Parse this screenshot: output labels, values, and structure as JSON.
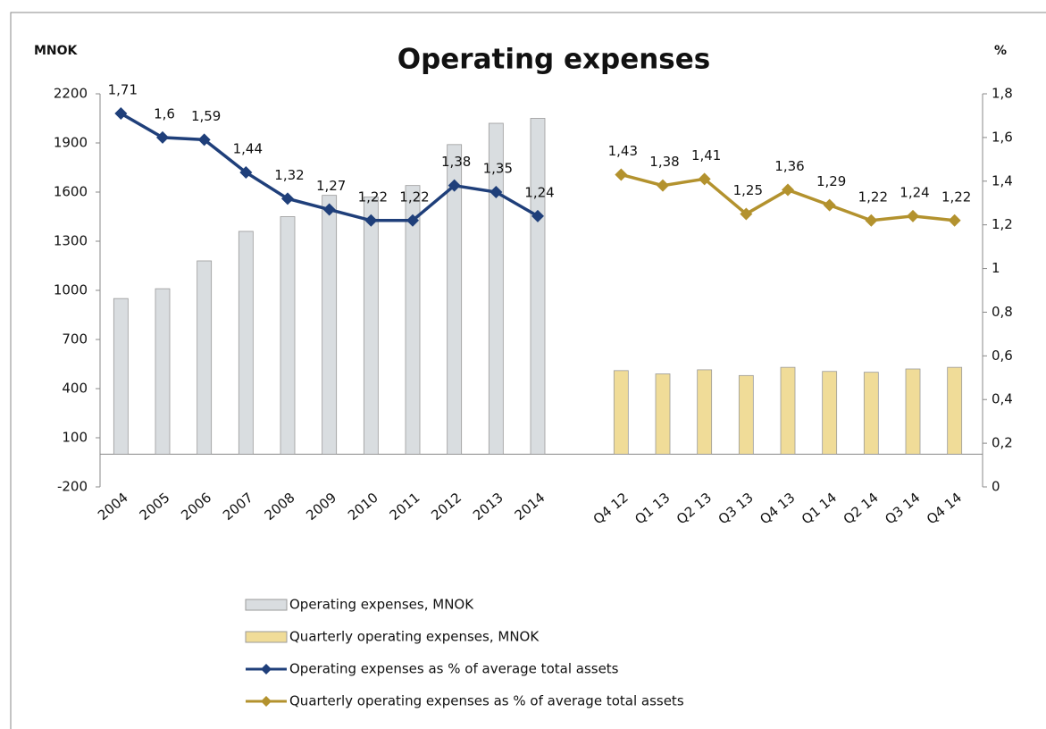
{
  "chart_data": {
    "type": "combo",
    "title": "Operating expenses",
    "y_label": "MNOK",
    "y2_label": "%",
    "categories": [
      "2004",
      "2005",
      "2006",
      "2007",
      "2008",
      "2009",
      "2010",
      "2011",
      "2012",
      "2013",
      "2014",
      null,
      "Q4 12",
      "Q1 13",
      "Q2 13",
      "Q3 13",
      "Q4 13",
      "Q1 14",
      "Q2 14",
      "Q3 14",
      "Q4 14"
    ],
    "ylim": [
      -200,
      2200
    ],
    "yticks": [
      -200,
      100,
      400,
      700,
      1000,
      1300,
      1600,
      1900,
      2200
    ],
    "y2lim": [
      0,
      1.8
    ],
    "y2ticks": [
      0,
      {
        "value": 0.2,
        "label": "0,2"
      },
      {
        "value": 0.4,
        "label": "0,4"
      },
      {
        "value": 0.6,
        "label": "0,6"
      },
      {
        "value": 0.8,
        "label": "0,8"
      },
      1,
      {
        "value": 1.2,
        "label": "1,2"
      },
      {
        "value": 1.4,
        "label": "1,4"
      },
      {
        "value": 1.6,
        "label": "1,6"
      },
      {
        "value": 1.8,
        "label": "1,8"
      }
    ],
    "grid": false,
    "legend": "bottom",
    "series": [
      {
        "name": "Operating expenses, MNOK",
        "type": "bar",
        "color": "#d9dde0",
        "values": [
          950,
          1010,
          1180,
          1360,
          1450,
          1580,
          1570,
          1640,
          1890,
          2020,
          2050,
          null,
          null,
          null,
          null,
          null,
          null,
          null,
          null,
          null,
          null
        ]
      },
      {
        "name": "Quarterly operating expenses, MNOK",
        "type": "bar",
        "color": "#f0dc98",
        "values": [
          null,
          null,
          null,
          null,
          null,
          null,
          null,
          null,
          null,
          null,
          null,
          null,
          510,
          490,
          515,
          480,
          530,
          505,
          500,
          520,
          530
        ]
      },
      {
        "name": "Operating expenses as % of average total assets",
        "type": "line",
        "axis": "y2",
        "color": "#1f3f7a",
        "values": [
          1.71,
          1.6,
          1.59,
          1.44,
          1.32,
          1.27,
          1.22,
          1.22,
          1.38,
          1.35,
          1.24,
          null,
          null,
          null,
          null,
          null,
          null,
          null,
          null,
          null,
          null
        ],
        "value_labels": [
          "1,71",
          "1,6",
          "1,59",
          "1,44",
          "1,32",
          "1,27",
          "1,22",
          "1,22",
          "1,38",
          "1,35",
          "1,24",
          null,
          null,
          null,
          null,
          null,
          null,
          null,
          null,
          null,
          null
        ]
      },
      {
        "name": "Quarterly operating expenses as % of average total assets",
        "type": "line",
        "axis": "y2",
        "color": "#b3922e",
        "values": [
          null,
          null,
          null,
          null,
          null,
          null,
          null,
          null,
          null,
          null,
          null,
          null,
          1.43,
          1.38,
          1.41,
          1.25,
          1.36,
          1.29,
          1.22,
          1.24,
          1.22
        ],
        "value_labels": [
          null,
          null,
          null,
          null,
          null,
          null,
          null,
          null,
          null,
          null,
          null,
          null,
          "1,43",
          "1,38",
          "1,41",
          "1,25",
          "1,36",
          "1,29",
          "1,22",
          "1,24",
          "1,22"
        ]
      }
    ]
  }
}
